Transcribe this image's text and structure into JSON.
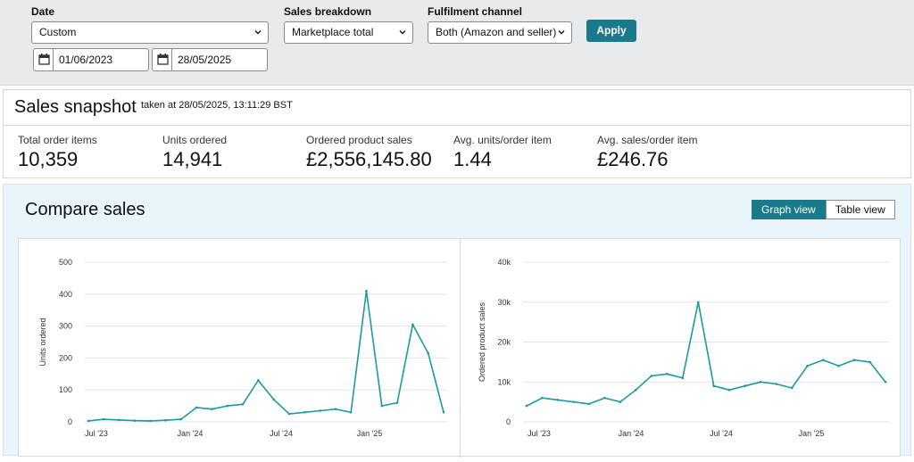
{
  "filters": {
    "date": {
      "label": "Date",
      "selected": "Custom",
      "from": "01/06/2023",
      "to": "28/05/2025"
    },
    "sales_breakdown": {
      "label": "Sales breakdown",
      "selected": "Marketplace total"
    },
    "fulfilment_channel": {
      "label": "Fulfilment channel",
      "selected": "Both (Amazon and seller)"
    },
    "apply_label": "Apply"
  },
  "snapshot": {
    "title": "Sales snapshot",
    "taken": "taken at 28/05/2025, 13:11:29 BST",
    "metrics": [
      {
        "label": "Total order items",
        "value": "10,359"
      },
      {
        "label": "Units ordered",
        "value": "14,941"
      },
      {
        "label": "Ordered product sales",
        "value": "£2,556,145.80"
      },
      {
        "label": "Avg. units/order item",
        "value": "1.44"
      },
      {
        "label": "Avg. sales/order item",
        "value": "£246.76"
      }
    ]
  },
  "compare": {
    "title": "Compare sales",
    "graph_view_label": "Graph view",
    "table_view_label": "Table view",
    "accent": "#1a9aa6"
  },
  "chart_data": [
    {
      "type": "line",
      "title": "",
      "xlabel": "",
      "ylabel": "Units ordered",
      "ylim": [
        0,
        500
      ],
      "yticks": [
        "0",
        "100",
        "200",
        "300",
        "400",
        "500"
      ],
      "xticks": [
        "Jul '23",
        "Jan '24",
        "Jul '24",
        "Jan '25"
      ],
      "grid": true,
      "series": [
        {
          "x": [
            "2023-06",
            "2023-07",
            "2023-08",
            "2023-09",
            "2023-10",
            "2023-11",
            "2023-12",
            "2024-01",
            "2024-02",
            "2024-03",
            "2024-04",
            "2024-05",
            "2024-06",
            "2024-07",
            "2024-08",
            "2024-09",
            "2024-10",
            "2024-11",
            "2024-12",
            "2025-01",
            "2025-02",
            "2025-03",
            "2025-04",
            "2025-05"
          ],
          "values": [
            3,
            8,
            6,
            4,
            3,
            5,
            8,
            45,
            40,
            50,
            55,
            130,
            70,
            25,
            30,
            35,
            40,
            30,
            410,
            50,
            60,
            305,
            215,
            30
          ]
        }
      ]
    },
    {
      "type": "line",
      "title": "",
      "xlabel": "",
      "ylabel": "Ordered product sales",
      "ylim": [
        0,
        40000
      ],
      "yticks": [
        "0",
        "10k",
        "20k",
        "30k",
        "40k"
      ],
      "xticks": [
        "Jul '23",
        "Jan '24",
        "Jul '24",
        "Jan '25"
      ],
      "grid": true,
      "series": [
        {
          "x": [
            "2023-06",
            "2023-07",
            "2023-08",
            "2023-09",
            "2023-10",
            "2023-11",
            "2023-12",
            "2024-01",
            "2024-02",
            "2024-03",
            "2024-04",
            "2024-05",
            "2024-06",
            "2024-07",
            "2024-08",
            "2024-09",
            "2024-10",
            "2024-11",
            "2024-12",
            "2025-01",
            "2025-02",
            "2025-03",
            "2025-04",
            "2025-05"
          ],
          "values": [
            4000,
            6000,
            5500,
            5000,
            4500,
            6000,
            5000,
            8000,
            11500,
            12000,
            11000,
            30000,
            9000,
            8000,
            9000,
            10000,
            9500,
            8500,
            14000,
            15500,
            14000,
            15500,
            15000,
            10000
          ]
        }
      ]
    }
  ]
}
